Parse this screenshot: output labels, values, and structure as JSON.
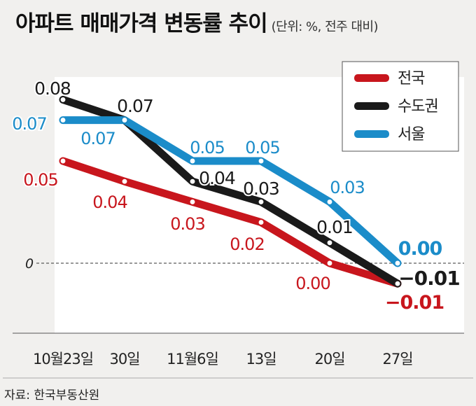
{
  "title": "아파트 매매가격 변동률 추이",
  "subtitle": "(단위: %, 전주 대비)",
  "source": "자료: 한국부동산원",
  "chart_data": {
    "type": "line",
    "categories": [
      "10월23일",
      "30일",
      "11월6일",
      "13일",
      "20일",
      "27일"
    ],
    "ylim": [
      -0.01,
      0.08
    ],
    "zero_label": "0",
    "series": [
      {
        "name": "전국",
        "color": "#c8161d",
        "values": [
          0.05,
          0.04,
          0.03,
          0.02,
          0.0,
          -0.01
        ],
        "labels": [
          "0.05",
          "0.04",
          "0.03",
          "0.02",
          "0.00",
          "−0.01"
        ]
      },
      {
        "name": "수도권",
        "color": "#1a1a1a",
        "values": [
          0.08,
          0.07,
          0.04,
          0.03,
          0.01,
          -0.01
        ],
        "labels": [
          "0.08",
          "0.07",
          "0.04",
          "0.03",
          "0.01",
          "−0.01"
        ]
      },
      {
        "name": "서울",
        "color": "#1b8cc9",
        "values": [
          0.07,
          0.07,
          0.05,
          0.05,
          0.03,
          0.0
        ],
        "labels": [
          "0.07",
          "0.07",
          "0.05",
          "0.05",
          "0.03",
          "0.00"
        ]
      }
    ],
    "legend": [
      "전국",
      "수도권",
      "서울"
    ],
    "legend_position": "top-right"
  }
}
